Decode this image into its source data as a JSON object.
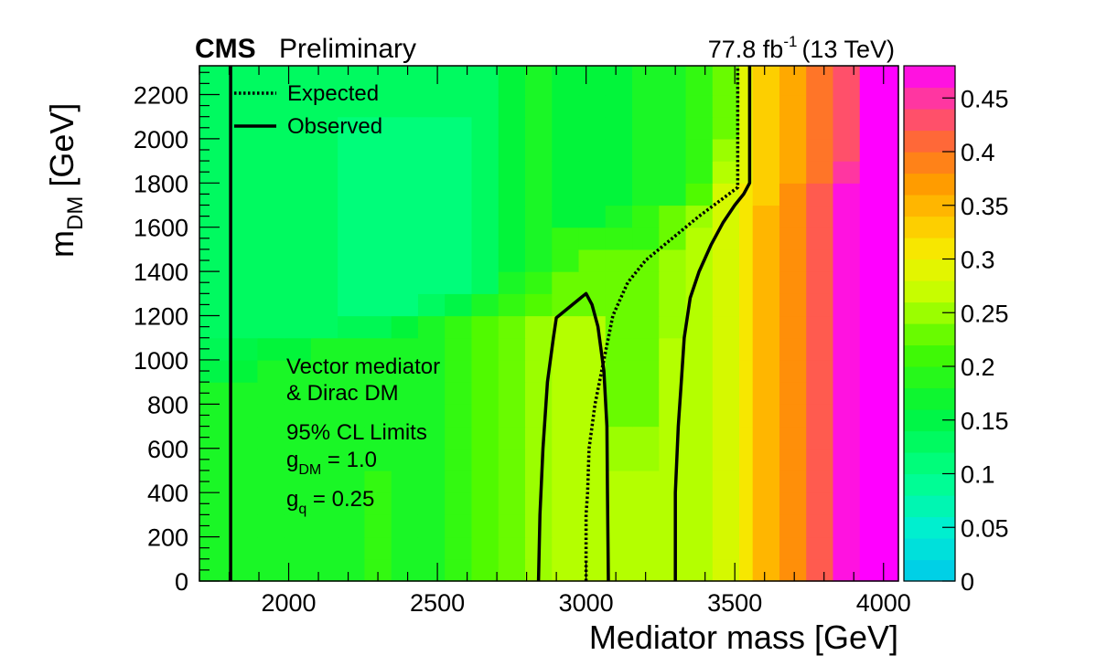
{
  "header": {
    "experiment": "CMS",
    "status": "Preliminary",
    "lumi_value": "77.8 fb",
    "lumi_exponent": "-1",
    "energy": "(13 TeV)"
  },
  "legend": {
    "expected_label": "Expected",
    "observed_label": "Observed"
  },
  "annotations": {
    "model_line1": "Vector mediator",
    "model_line2": "& Dirac DM",
    "cl_line": "95% CL Limits",
    "gdm_sym": "g",
    "gdm_sub": "DM",
    "gdm_val": " = 1.0",
    "gq_sym": "g",
    "gq_sub": "q",
    "gq_val": " = 0.25"
  },
  "chart_data": {
    "type": "heatmap",
    "xlabel": "Mediator mass [GeV]",
    "ylabel_main": "m",
    "ylabel_sub": "DM",
    "ylabel_unit": " [GeV]",
    "xlim": [
      1700,
      4050
    ],
    "ylim": [
      0,
      2330
    ],
    "zlim": [
      0,
      0.48
    ],
    "xticks": [
      2000,
      2500,
      3000,
      3500,
      4000
    ],
    "yticks": [
      0,
      200,
      400,
      600,
      800,
      1000,
      1200,
      1400,
      1600,
      1800,
      2000,
      2200
    ],
    "zticks": [
      "0",
      "0.05",
      "0.1",
      "0.15",
      "0.2",
      "0.25",
      "0.3",
      "0.35",
      "0.4",
      "0.45"
    ],
    "zticks_values": [
      0,
      0.05,
      0.1,
      0.15,
      0.2,
      0.25,
      0.3,
      0.35,
      0.4,
      0.45
    ],
    "x_edges": [
      1700,
      1805,
      1895,
      1985,
      2075,
      2165,
      2255,
      2345,
      2435,
      2525,
      2615,
      2705,
      2795,
      2885,
      2975,
      3065,
      3155,
      3245,
      3335,
      3425,
      3515,
      3560,
      3650,
      3740,
      3830,
      3920,
      4050
    ],
    "y_edges": [
      0,
      100,
      200,
      300,
      400,
      500,
      600,
      700,
      800,
      900,
      1000,
      1100,
      1200,
      1300,
      1400,
      1500,
      1600,
      1700,
      1800,
      1900,
      2000,
      2100,
      2200,
      2330
    ],
    "z": [
      [
        0.18,
        0.18,
        0.18,
        0.18,
        0.18,
        0.18,
        0.2,
        0.18,
        0.18,
        0.2,
        0.22,
        0.23,
        0.25,
        0.26,
        0.26,
        0.26,
        0.26,
        0.26,
        0.26,
        0.28,
        0.31,
        0.35,
        0.38,
        0.42,
        0.47,
        0.48
      ],
      [
        0.18,
        0.18,
        0.18,
        0.18,
        0.18,
        0.18,
        0.2,
        0.18,
        0.18,
        0.2,
        0.22,
        0.23,
        0.25,
        0.26,
        0.26,
        0.26,
        0.26,
        0.26,
        0.26,
        0.28,
        0.31,
        0.35,
        0.38,
        0.42,
        0.47,
        0.48
      ],
      [
        0.18,
        0.18,
        0.18,
        0.18,
        0.18,
        0.18,
        0.2,
        0.18,
        0.18,
        0.2,
        0.22,
        0.23,
        0.25,
        0.26,
        0.26,
        0.26,
        0.26,
        0.26,
        0.26,
        0.28,
        0.31,
        0.35,
        0.38,
        0.42,
        0.47,
        0.48
      ],
      [
        0.18,
        0.18,
        0.18,
        0.18,
        0.18,
        0.18,
        0.2,
        0.18,
        0.18,
        0.2,
        0.22,
        0.23,
        0.25,
        0.26,
        0.26,
        0.26,
        0.26,
        0.26,
        0.26,
        0.28,
        0.31,
        0.35,
        0.38,
        0.42,
        0.47,
        0.48
      ],
      [
        0.18,
        0.18,
        0.18,
        0.18,
        0.18,
        0.18,
        0.2,
        0.18,
        0.18,
        0.2,
        0.22,
        0.23,
        0.25,
        0.26,
        0.26,
        0.26,
        0.26,
        0.26,
        0.26,
        0.28,
        0.31,
        0.35,
        0.38,
        0.42,
        0.47,
        0.48
      ],
      [
        0.18,
        0.18,
        0.18,
        0.18,
        0.18,
        0.18,
        0.18,
        0.18,
        0.18,
        0.2,
        0.22,
        0.23,
        0.25,
        0.26,
        0.26,
        0.25,
        0.25,
        0.26,
        0.26,
        0.28,
        0.31,
        0.35,
        0.38,
        0.42,
        0.47,
        0.48
      ],
      [
        0.18,
        0.18,
        0.18,
        0.18,
        0.18,
        0.18,
        0.18,
        0.18,
        0.18,
        0.2,
        0.22,
        0.23,
        0.25,
        0.26,
        0.26,
        0.25,
        0.25,
        0.26,
        0.26,
        0.28,
        0.31,
        0.35,
        0.38,
        0.42,
        0.47,
        0.48
      ],
      [
        0.18,
        0.18,
        0.18,
        0.18,
        0.18,
        0.18,
        0.18,
        0.18,
        0.18,
        0.2,
        0.22,
        0.23,
        0.25,
        0.26,
        0.26,
        0.23,
        0.23,
        0.26,
        0.26,
        0.28,
        0.31,
        0.35,
        0.38,
        0.42,
        0.47,
        0.48
      ],
      [
        0.18,
        0.18,
        0.18,
        0.18,
        0.18,
        0.18,
        0.18,
        0.18,
        0.18,
        0.2,
        0.22,
        0.23,
        0.25,
        0.26,
        0.26,
        0.23,
        0.23,
        0.26,
        0.26,
        0.28,
        0.31,
        0.35,
        0.38,
        0.42,
        0.47,
        0.48
      ],
      [
        0.15,
        0.16,
        0.18,
        0.18,
        0.18,
        0.18,
        0.18,
        0.18,
        0.18,
        0.2,
        0.22,
        0.23,
        0.25,
        0.26,
        0.26,
        0.23,
        0.23,
        0.26,
        0.26,
        0.28,
        0.31,
        0.35,
        0.38,
        0.42,
        0.47,
        0.48
      ],
      [
        0.14,
        0.15,
        0.16,
        0.16,
        0.18,
        0.18,
        0.18,
        0.18,
        0.18,
        0.2,
        0.22,
        0.23,
        0.25,
        0.26,
        0.26,
        0.23,
        0.23,
        0.26,
        0.26,
        0.28,
        0.31,
        0.35,
        0.38,
        0.42,
        0.47,
        0.48
      ],
      [
        0.13,
        0.13,
        0.13,
        0.13,
        0.13,
        0.14,
        0.14,
        0.16,
        0.18,
        0.2,
        0.22,
        0.23,
        0.25,
        0.26,
        0.26,
        0.23,
        0.23,
        0.25,
        0.26,
        0.28,
        0.31,
        0.35,
        0.38,
        0.42,
        0.47,
        0.48
      ],
      [
        0.13,
        0.13,
        0.13,
        0.13,
        0.13,
        0.11,
        0.11,
        0.11,
        0.13,
        0.15,
        0.18,
        0.2,
        0.22,
        0.23,
        0.23,
        0.23,
        0.23,
        0.25,
        0.26,
        0.28,
        0.31,
        0.35,
        0.38,
        0.42,
        0.47,
        0.48
      ],
      [
        0.13,
        0.13,
        0.13,
        0.13,
        0.13,
        0.11,
        0.11,
        0.11,
        0.11,
        0.11,
        0.13,
        0.18,
        0.2,
        0.23,
        0.23,
        0.23,
        0.23,
        0.25,
        0.26,
        0.28,
        0.31,
        0.35,
        0.38,
        0.42,
        0.47,
        0.48
      ],
      [
        0.13,
        0.13,
        0.13,
        0.13,
        0.13,
        0.11,
        0.11,
        0.11,
        0.11,
        0.11,
        0.13,
        0.16,
        0.18,
        0.2,
        0.23,
        0.23,
        0.23,
        0.25,
        0.26,
        0.28,
        0.31,
        0.35,
        0.38,
        0.42,
        0.47,
        0.48
      ],
      [
        0.13,
        0.13,
        0.13,
        0.13,
        0.13,
        0.11,
        0.11,
        0.11,
        0.11,
        0.11,
        0.13,
        0.16,
        0.18,
        0.2,
        0.2,
        0.2,
        0.2,
        0.23,
        0.26,
        0.28,
        0.31,
        0.35,
        0.38,
        0.42,
        0.47,
        0.48
      ],
      [
        0.13,
        0.13,
        0.13,
        0.13,
        0.13,
        0.11,
        0.11,
        0.11,
        0.11,
        0.11,
        0.13,
        0.16,
        0.18,
        0.16,
        0.16,
        0.18,
        0.2,
        0.23,
        0.25,
        0.28,
        0.31,
        0.35,
        0.38,
        0.42,
        0.47,
        0.48
      ],
      [
        0.13,
        0.13,
        0.13,
        0.13,
        0.13,
        0.11,
        0.11,
        0.11,
        0.11,
        0.11,
        0.13,
        0.16,
        0.18,
        0.16,
        0.16,
        0.16,
        0.18,
        0.18,
        0.22,
        0.28,
        0.31,
        0.33,
        0.38,
        0.42,
        0.47,
        0.48
      ],
      [
        0.13,
        0.13,
        0.13,
        0.13,
        0.13,
        0.11,
        0.11,
        0.11,
        0.11,
        0.11,
        0.13,
        0.16,
        0.18,
        0.16,
        0.16,
        0.16,
        0.18,
        0.18,
        0.2,
        0.26,
        0.29,
        0.33,
        0.36,
        0.4,
        0.45,
        0.48
      ],
      [
        0.13,
        0.13,
        0.13,
        0.13,
        0.13,
        0.11,
        0.11,
        0.11,
        0.11,
        0.11,
        0.13,
        0.16,
        0.18,
        0.16,
        0.16,
        0.16,
        0.18,
        0.18,
        0.2,
        0.25,
        0.29,
        0.33,
        0.36,
        0.4,
        0.43,
        0.48
      ],
      [
        0.13,
        0.13,
        0.13,
        0.13,
        0.13,
        0.11,
        0.11,
        0.11,
        0.11,
        0.11,
        0.13,
        0.16,
        0.18,
        0.16,
        0.16,
        0.16,
        0.18,
        0.18,
        0.2,
        0.23,
        0.29,
        0.33,
        0.36,
        0.4,
        0.43,
        0.48
      ],
      [
        0.13,
        0.13,
        0.13,
        0.13,
        0.13,
        0.13,
        0.13,
        0.13,
        0.13,
        0.13,
        0.13,
        0.16,
        0.18,
        0.16,
        0.16,
        0.16,
        0.18,
        0.18,
        0.2,
        0.23,
        0.29,
        0.33,
        0.36,
        0.4,
        0.43,
        0.48
      ],
      [
        0.13,
        0.13,
        0.13,
        0.13,
        0.13,
        0.13,
        0.13,
        0.13,
        0.13,
        0.13,
        0.13,
        0.16,
        0.18,
        0.16,
        0.16,
        0.16,
        0.18,
        0.18,
        0.2,
        0.23,
        0.29,
        0.33,
        0.36,
        0.4,
        0.43,
        0.48
      ]
    ],
    "series": [
      {
        "name": "Expected",
        "style": "dotted",
        "curves": [
          [
            [
              3000,
              0
            ],
            [
              3000,
              300
            ],
            [
              3005,
              400
            ],
            [
              3010,
              600
            ],
            [
              3030,
              800
            ],
            [
              3060,
              1000
            ],
            [
              3090,
              1200
            ],
            [
              3140,
              1350
            ],
            [
              3200,
              1450
            ],
            [
              3290,
              1550
            ],
            [
              3380,
              1650
            ],
            [
              3450,
              1720
            ],
            [
              3490,
              1760
            ],
            [
              3510,
              1780
            ],
            [
              3510,
              2000
            ],
            [
              3510,
              2330
            ]
          ]
        ]
      },
      {
        "name": "Observed",
        "style": "solid",
        "curves": [
          [
            [
              1805,
              0
            ],
            [
              1805,
              2330
            ]
          ],
          [
            [
              2840,
              0
            ],
            [
              2845,
              300
            ],
            [
              2855,
              600
            ],
            [
              2870,
              900
            ],
            [
              2890,
              1100
            ],
            [
              2900,
              1190
            ],
            [
              3000,
              1300
            ],
            [
              3020,
              1250
            ],
            [
              3040,
              1150
            ],
            [
              3060,
              950
            ],
            [
              3070,
              700
            ],
            [
              3072,
              400
            ],
            [
              3075,
              0
            ]
          ],
          [
            [
              3300,
              0
            ],
            [
              3300,
              400
            ],
            [
              3310,
              700
            ],
            [
              3320,
              900
            ],
            [
              3330,
              1100
            ],
            [
              3350,
              1280
            ],
            [
              3380,
              1400
            ],
            [
              3420,
              1520
            ],
            [
              3460,
              1620
            ],
            [
              3500,
              1700
            ],
            [
              3530,
              1750
            ],
            [
              3550,
              1800
            ],
            [
              3550,
              2000
            ],
            [
              3550,
              2330
            ]
          ]
        ]
      }
    ]
  }
}
